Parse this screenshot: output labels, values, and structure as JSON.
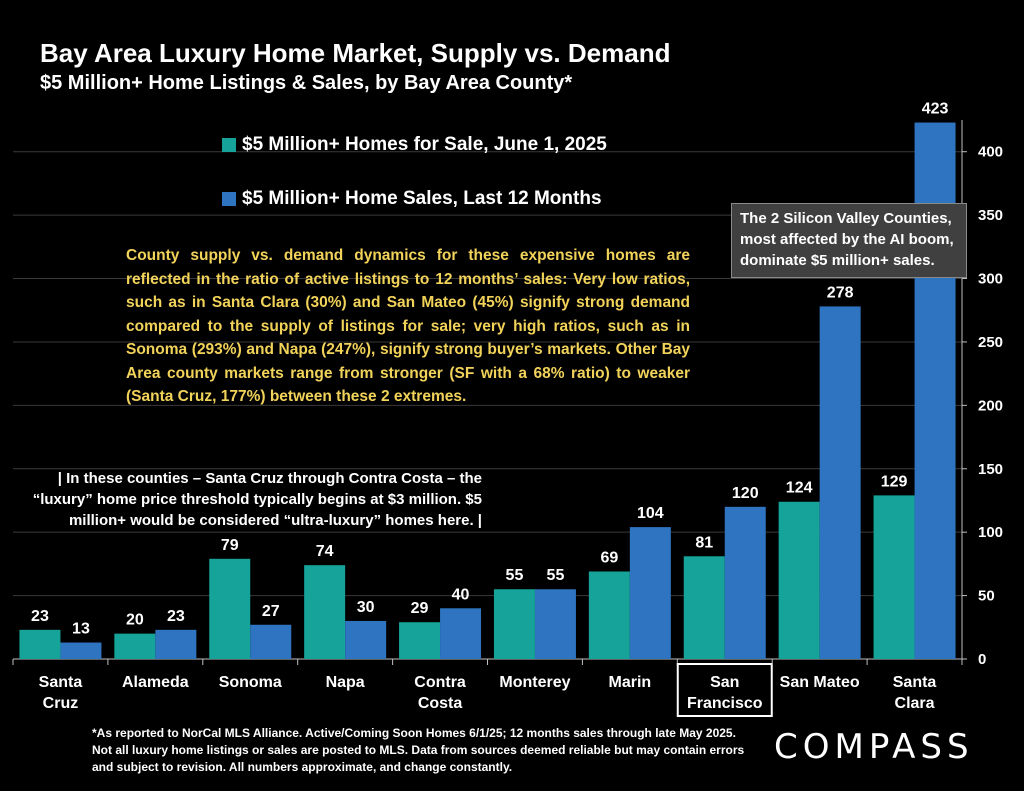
{
  "title": "Bay Area Luxury Home Market, Supply vs. Demand",
  "subtitle": "$5 Million+ Home Listings & Sales, by Bay Area County*",
  "legend": {
    "items": [
      {
        "label": "$5 Million+ Homes for Sale, June 1, 2025",
        "color": "#15a39a"
      },
      {
        "label": "$5 Million+ Home Sales, Last 12 Months",
        "color": "#2e74c0"
      }
    ]
  },
  "annotations": {
    "supply_demand_note": "County supply vs. demand dynamics for these expensive homes are reflected in the ratio of active listings to 12 months’ sales:  Very low ratios, such as in Santa Clara (30%) and San Mateo (45%) signify strong demand compared to the supply of listings for sale; very high ratios, such as in Sonoma (293%) and Napa (247%), signify strong buyer’s markets. Other Bay Area county markets range from stronger (SF with a 68% ratio) to weaker (Santa Cruz, 177%) between these 2 extremes.",
    "threshold_note": "| In these counties – Santa Cruz through Contra Costa – the “luxury” home price threshold typically begins at $3 million. $5 million+ would be considered “ultra-luxury” homes here. |",
    "silicon_valley_callout": "The 2 Silicon Valley Counties, most affected by the AI boom, dominate $5 million+ sales."
  },
  "footnote": "*As reported to NorCal MLS Alliance. Active/Coming Soon Homes 6/1/25; 12 months sales through late May 2025. Not all luxury home listings or sales are posted to MLS. Data from sources deemed reliable but may contain errors and subject to revision. All numbers approximate, and change constantly.",
  "logo_text": "COMPASS",
  "chart_data": {
    "type": "bar",
    "title": "Bay Area Luxury Home Market, Supply vs. Demand",
    "subtitle": "$5 Million+ Home Listings & Sales, by Bay Area County*",
    "categories": [
      [
        "Santa",
        "Cruz"
      ],
      [
        "Alameda"
      ],
      [
        "Sonoma"
      ],
      [
        "Napa"
      ],
      [
        "Contra",
        "Costa"
      ],
      [
        "Monterey"
      ],
      [
        "Marin"
      ],
      [
        "San",
        "Francisco"
      ],
      [
        "San Mateo"
      ],
      [
        "Santa",
        "Clara"
      ]
    ],
    "highlighted_category": "San Francisco",
    "series": [
      {
        "name": "$5 Million+ Homes for Sale, June 1, 2025",
        "color": "#15a39a",
        "values": [
          23,
          20,
          79,
          74,
          29,
          55,
          69,
          81,
          124,
          129
        ]
      },
      {
        "name": "$5 Million+ Home Sales, Last 12 Months",
        "color": "#2e74c0",
        "values": [
          13,
          23,
          27,
          30,
          40,
          55,
          104,
          120,
          278,
          423
        ]
      }
    ],
    "y_axis": {
      "position": "right",
      "min": 0,
      "max": 425,
      "ticks": [
        0,
        50,
        100,
        150,
        200,
        250,
        300,
        350,
        400
      ]
    },
    "grid": true,
    "legend_position": "top-left"
  }
}
